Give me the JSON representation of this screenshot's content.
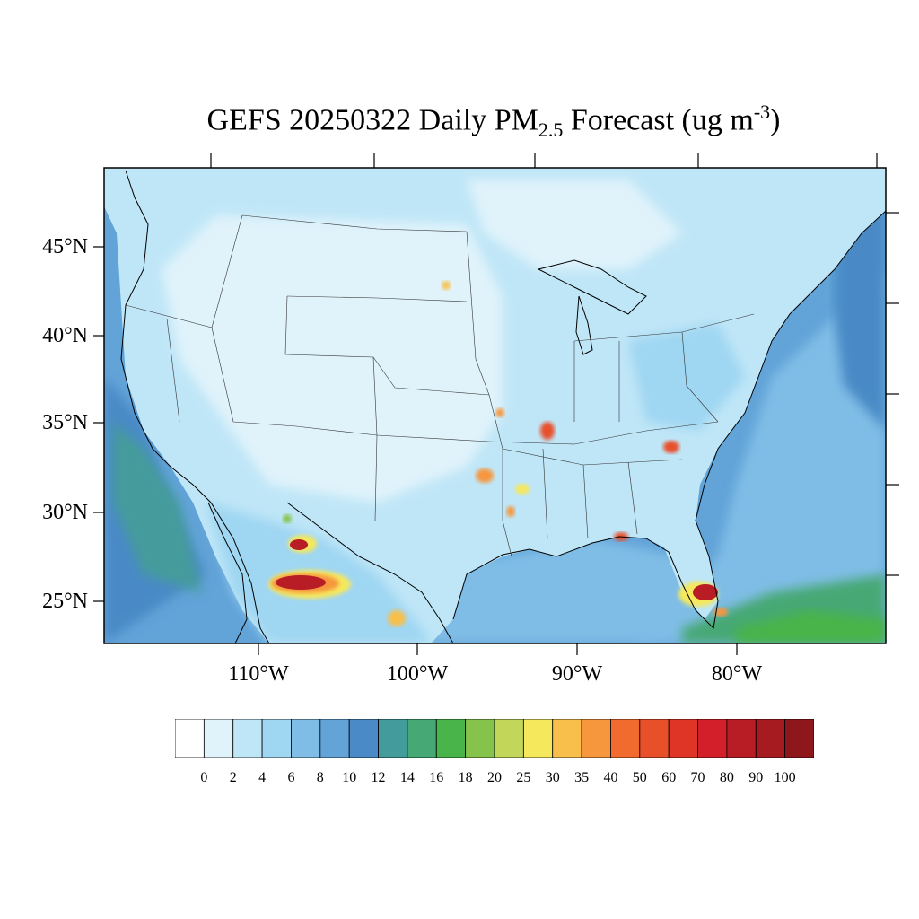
{
  "title": {
    "prefix": "GEFS 20250322 Daily PM",
    "sub": "2.5",
    "middle": " Forecast (ug m",
    "sup": "-3",
    "suffix": ")"
  },
  "map": {
    "lat_labels": [
      "45°N",
      "40°N",
      "35°N",
      "30°N",
      "25°N"
    ],
    "lon_labels": [
      "110°W",
      "100°W",
      "90°W",
      "80°W"
    ]
  },
  "colorbar": {
    "labels": [
      "0",
      "2",
      "4",
      "6",
      "8",
      "10",
      "12",
      "14",
      "16",
      "18",
      "20",
      "25",
      "30",
      "35",
      "40",
      "50",
      "60",
      "70",
      "80",
      "90",
      "100"
    ],
    "colors": [
      "#ffffff",
      "#e0f3fb",
      "#bfe6f7",
      "#9fd6f2",
      "#7fbde6",
      "#62a3d8",
      "#4a8ac6",
      "#449b9b",
      "#46a874",
      "#49b44a",
      "#86c34d",
      "#c2d65a",
      "#f6e85c",
      "#f8c04b",
      "#f6963d",
      "#f26b2e",
      "#e8502a",
      "#de3527",
      "#d21f2a",
      "#b81c24",
      "#a51b1f",
      "#8e171b"
    ]
  }
}
